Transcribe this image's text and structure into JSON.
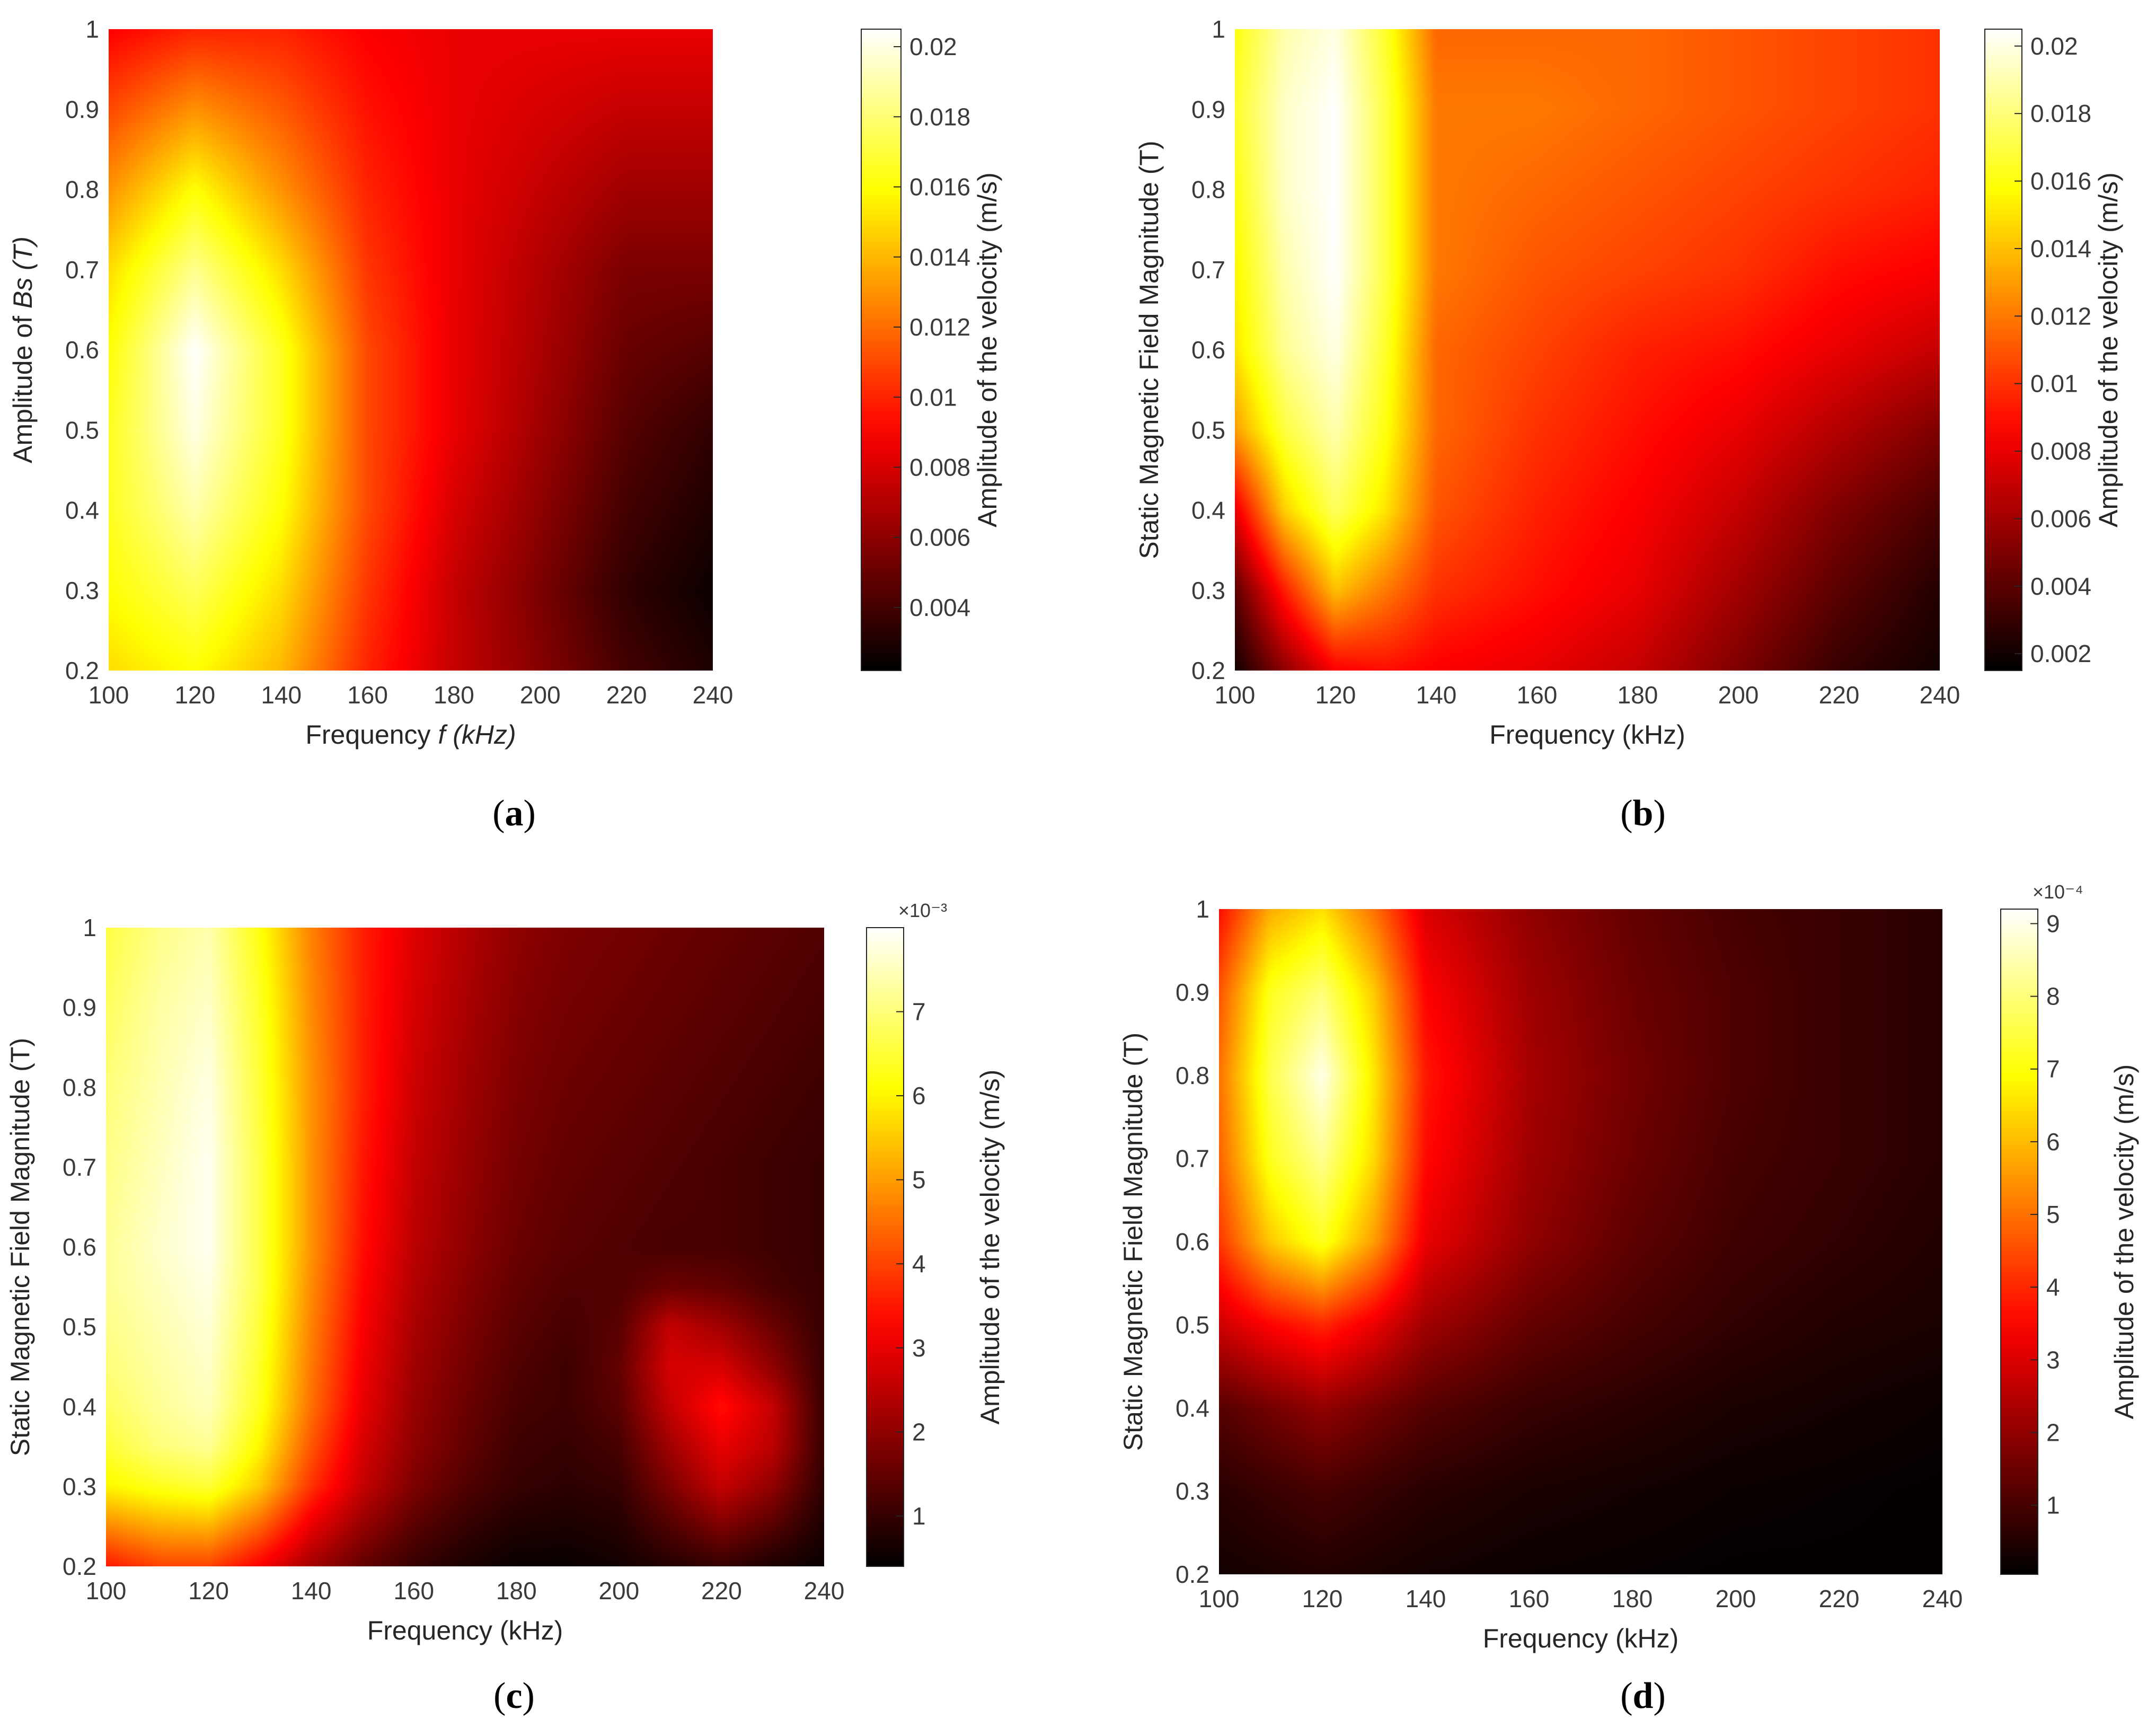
{
  "chart_data": [
    {
      "type": "heatmap",
      "panel": "a",
      "caption_letter": "a",
      "xlabel_parts": [
        "Frequency ",
        "f (kHz)"
      ],
      "ylabel_parts": [
        "Amplitude of ",
        "Bs",
        " (T)"
      ],
      "colorbar_label": "Amplitude of the velocity (m/s)",
      "colorbar_exponent": "",
      "x": [
        100,
        120,
        140,
        160,
        180,
        200,
        220,
        240
      ],
      "y": [
        0.2,
        0.3,
        0.4,
        0.5,
        0.6,
        0.7,
        0.8,
        0.9,
        1.0
      ],
      "xlim": [
        100,
        240
      ],
      "ylim": [
        0.2,
        1
      ],
      "xticks": [
        "100",
        "120",
        "140",
        "160",
        "180",
        "200",
        "220",
        "240"
      ],
      "yticks": [
        "0.2",
        "0.3",
        "0.4",
        "0.5",
        "0.6",
        "0.7",
        "0.8",
        "0.9",
        "1"
      ],
      "zlim": [
        0.0022,
        0.0205
      ],
      "cticks": [
        0.004,
        0.006,
        0.008,
        0.01,
        0.012,
        0.014,
        0.016,
        0.018,
        0.02
      ],
      "cticklabels": [
        "0.004",
        "0.006",
        "0.008",
        "0.01",
        "0.012",
        "0.014",
        "0.016",
        "0.018",
        "0.02"
      ],
      "z": [
        [
          0.015,
          0.016,
          0.014,
          0.01,
          0.0075,
          0.0058,
          0.004,
          0.003
        ],
        [
          0.016,
          0.0175,
          0.015,
          0.0105,
          0.0075,
          0.0055,
          0.0035,
          0.0025
        ],
        [
          0.0165,
          0.019,
          0.016,
          0.011,
          0.008,
          0.006,
          0.004,
          0.003
        ],
        [
          0.0165,
          0.02,
          0.0165,
          0.011,
          0.0085,
          0.0065,
          0.0045,
          0.0035
        ],
        [
          0.016,
          0.0205,
          0.0165,
          0.011,
          0.0085,
          0.0068,
          0.005,
          0.0045
        ],
        [
          0.015,
          0.0185,
          0.015,
          0.0105,
          0.0085,
          0.007,
          0.0055,
          0.0055
        ],
        [
          0.013,
          0.016,
          0.013,
          0.01,
          0.0085,
          0.0075,
          0.0065,
          0.0065
        ],
        [
          0.011,
          0.013,
          0.0115,
          0.0095,
          0.0085,
          0.008,
          0.0075,
          0.0075
        ],
        [
          0.009,
          0.01,
          0.01,
          0.009,
          0.0085,
          0.0085,
          0.0085,
          0.0085
        ]
      ]
    },
    {
      "type": "heatmap",
      "panel": "b",
      "caption_letter": "b",
      "xlabel_parts": [
        "Frequency (kHz)"
      ],
      "ylabel_parts": [
        "Static Magnetic Field Magnitude (T)"
      ],
      "colorbar_label": "Amplitude of the velocity (m/s)",
      "colorbar_exponent": "",
      "x": [
        100,
        110,
        120,
        130,
        140,
        160,
        180,
        200,
        220,
        240
      ],
      "y": [
        0.2,
        0.3,
        0.4,
        0.5,
        0.6,
        0.7,
        0.8,
        0.9,
        1.0
      ],
      "xlim": [
        100,
        240
      ],
      "ylim": [
        0.2,
        1
      ],
      "xticks": [
        "100",
        "120",
        "140",
        "160",
        "180",
        "200",
        "220",
        "240"
      ],
      "yticks": [
        "0.2",
        "0.3",
        "0.4",
        "0.5",
        "0.6",
        "0.7",
        "0.8",
        "0.9",
        "1"
      ],
      "zlim": [
        0.0015,
        0.0205
      ],
      "cticks": [
        0.002,
        0.004,
        0.006,
        0.008,
        0.01,
        0.012,
        0.014,
        0.016,
        0.018,
        0.02
      ],
      "cticklabels": [
        "0.002",
        "0.004",
        "0.006",
        "0.008",
        "0.01",
        "0.012",
        "0.014",
        "0.016",
        "0.018",
        "0.02"
      ],
      "z": [
        [
          0.002,
          0.0055,
          0.0085,
          0.009,
          0.0085,
          0.008,
          0.007,
          0.005,
          0.003,
          0.002
        ],
        [
          0.004,
          0.0095,
          0.014,
          0.012,
          0.01,
          0.009,
          0.008,
          0.006,
          0.004,
          0.0025
        ],
        [
          0.008,
          0.0145,
          0.0175,
          0.015,
          0.011,
          0.0095,
          0.0085,
          0.007,
          0.005,
          0.0035
        ],
        [
          0.013,
          0.017,
          0.019,
          0.016,
          0.0115,
          0.01,
          0.009,
          0.008,
          0.0065,
          0.005
        ],
        [
          0.015,
          0.0185,
          0.02,
          0.0165,
          0.0115,
          0.0105,
          0.0095,
          0.009,
          0.008,
          0.007
        ],
        [
          0.0155,
          0.019,
          0.0205,
          0.017,
          0.012,
          0.011,
          0.0105,
          0.01,
          0.009,
          0.0085
        ],
        [
          0.016,
          0.0195,
          0.0205,
          0.017,
          0.012,
          0.0115,
          0.011,
          0.0105,
          0.01,
          0.0095
        ],
        [
          0.0165,
          0.0195,
          0.0205,
          0.017,
          0.012,
          0.012,
          0.0115,
          0.011,
          0.0105,
          0.01
        ],
        [
          0.016,
          0.019,
          0.02,
          0.0165,
          0.0115,
          0.0115,
          0.0115,
          0.011,
          0.0105,
          0.01
        ]
      ]
    },
    {
      "type": "heatmap",
      "panel": "c",
      "caption_letter": "c",
      "xlabel_parts": [
        "Frequency (kHz)"
      ],
      "ylabel_parts": [
        "Static Magnetic Field Magnitude (T)"
      ],
      "colorbar_label": "Amplitude of the velocity (m/s)",
      "colorbar_exponent": "×10⁻³",
      "x": [
        100,
        110,
        120,
        130,
        140,
        150,
        160,
        170,
        180,
        190,
        200,
        210,
        220,
        230,
        240
      ],
      "y": [
        0.2,
        0.3,
        0.35,
        0.4,
        0.45,
        0.5,
        0.55,
        0.6,
        0.7,
        0.8,
        0.9,
        1.0
      ],
      "xlim": [
        100,
        240
      ],
      "ylim": [
        0.2,
        1
      ],
      "xticks": [
        "100",
        "120",
        "140",
        "160",
        "180",
        "200",
        "220",
        "240"
      ],
      "yticks": [
        "0.2",
        "0.3",
        "0.4",
        "0.5",
        "0.6",
        "0.7",
        "0.8",
        "0.9",
        "1"
      ],
      "zlim": [
        0.4,
        8.0
      ],
      "cticks": [
        1,
        2,
        3,
        4,
        5,
        6,
        7
      ],
      "cticklabels": [
        "1",
        "2",
        "3",
        "4",
        "5",
        "6",
        "7"
      ],
      "z": [
        [
          3.5,
          4.0,
          4.0,
          3.2,
          2.2,
          1.5,
          1.0,
          0.7,
          0.5,
          0.5,
          0.6,
          0.8,
          1.0,
          0.7,
          0.5
        ],
        [
          6.0,
          6.3,
          6.5,
          5.5,
          3.8,
          2.6,
          1.8,
          1.3,
          1.0,
          0.9,
          1.0,
          1.8,
          2.6,
          2.0,
          0.9
        ],
        [
          6.5,
          7.0,
          7.2,
          6.0,
          4.2,
          2.8,
          2.0,
          1.5,
          1.1,
          1.0,
          1.2,
          2.2,
          3.0,
          2.5,
          1.0
        ],
        [
          6.8,
          7.2,
          7.5,
          6.3,
          4.5,
          3.0,
          2.1,
          1.6,
          1.2,
          1.1,
          1.4,
          2.6,
          3.4,
          2.6,
          1.0
        ],
        [
          7.0,
          7.3,
          7.6,
          6.4,
          4.6,
          3.1,
          2.2,
          1.7,
          1.3,
          1.1,
          1.5,
          2.8,
          2.8,
          2.0,
          1.0
        ],
        [
          7.1,
          7.4,
          7.7,
          6.5,
          4.7,
          3.2,
          2.3,
          1.8,
          1.4,
          1.2,
          1.4,
          2.6,
          2.2,
          1.6,
          1.0
        ],
        [
          7.2,
          7.5,
          7.8,
          6.6,
          4.8,
          3.3,
          2.4,
          1.9,
          1.5,
          1.3,
          1.3,
          1.6,
          1.5,
          1.2,
          1.0
        ],
        [
          7.2,
          7.6,
          7.9,
          6.6,
          4.9,
          3.4,
          2.5,
          2.0,
          1.6,
          1.4,
          1.3,
          1.2,
          1.2,
          1.1,
          1.0
        ],
        [
          7.1,
          7.5,
          7.9,
          6.6,
          4.9,
          3.5,
          2.6,
          2.1,
          1.7,
          1.5,
          1.4,
          1.3,
          1.2,
          1.1,
          1.0
        ],
        [
          7.0,
          7.4,
          7.8,
          6.5,
          4.9,
          3.6,
          2.7,
          2.2,
          1.8,
          1.6,
          1.5,
          1.4,
          1.3,
          1.2,
          1.1
        ],
        [
          6.8,
          7.3,
          7.6,
          6.4,
          4.8,
          3.6,
          2.8,
          2.3,
          1.9,
          1.7,
          1.6,
          1.5,
          1.4,
          1.3,
          1.2
        ],
        [
          6.6,
          7.1,
          7.4,
          6.2,
          4.7,
          3.6,
          2.9,
          2.4,
          2.0,
          1.8,
          1.7,
          1.6,
          1.5,
          1.4,
          1.3
        ]
      ]
    },
    {
      "type": "heatmap",
      "panel": "d",
      "caption_letter": "d",
      "xlabel_parts": [
        "Frequency (kHz)"
      ],
      "ylabel_parts": [
        "Static Magnetic Field Magnitude (T)"
      ],
      "colorbar_label": "Amplitude of the velocity (m/s)",
      "colorbar_exponent": "×10⁻⁴",
      "x": [
        100,
        110,
        120,
        130,
        140,
        160,
        180,
        200,
        220,
        240
      ],
      "y": [
        0.2,
        0.3,
        0.4,
        0.5,
        0.6,
        0.7,
        0.8,
        0.9,
        1.0
      ],
      "xlim": [
        100,
        240
      ],
      "ylim": [
        0.2,
        1
      ],
      "xticks": [
        "100",
        "120",
        "140",
        "160",
        "180",
        "200",
        "220",
        "240"
      ],
      "yticks": [
        "0.2",
        "0.3",
        "0.4",
        "0.5",
        "0.6",
        "0.7",
        "0.8",
        "0.9",
        "1"
      ],
      "zlim": [
        0.05,
        9.2
      ],
      "cticks": [
        1,
        2,
        3,
        4,
        5,
        6,
        7,
        8,
        9
      ],
      "cticklabels": [
        "1",
        "2",
        "3",
        "4",
        "5",
        "6",
        "7",
        "8",
        "9"
      ],
      "z": [
        [
          0.3,
          0.4,
          0.5,
          0.4,
          0.3,
          0.2,
          0.15,
          0.1,
          0.1,
          0.1
        ],
        [
          0.6,
          0.8,
          1.0,
          0.8,
          0.6,
          0.4,
          0.3,
          0.2,
          0.15,
          0.1
        ],
        [
          1.2,
          1.6,
          2.0,
          1.6,
          1.2,
          0.8,
          0.6,
          0.4,
          0.3,
          0.2
        ],
        [
          2.8,
          3.5,
          4.0,
          3.2,
          2.2,
          1.4,
          1.0,
          0.7,
          0.5,
          0.4
        ],
        [
          4.2,
          6.2,
          7.2,
          5.6,
          3.2,
          2.0,
          1.3,
          0.9,
          0.7,
          0.5
        ],
        [
          4.8,
          7.2,
          8.2,
          6.4,
          3.6,
          2.2,
          1.5,
          1.0,
          0.8,
          0.6
        ],
        [
          5.0,
          7.6,
          9.0,
          6.6,
          3.8,
          2.3,
          1.6,
          1.1,
          0.8,
          0.6
        ],
        [
          4.6,
          7.2,
          8.0,
          6.2,
          3.5,
          2.2,
          1.5,
          1.1,
          0.8,
          0.6
        ],
        [
          3.6,
          5.8,
          6.5,
          5.0,
          3.0,
          2.0,
          1.4,
          1.0,
          0.8,
          0.6
        ]
      ]
    }
  ]
}
